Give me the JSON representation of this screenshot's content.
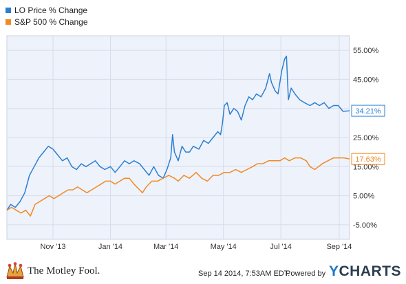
{
  "legend": [
    {
      "label": "LO Price  % Change",
      "color": "#2b7fd1"
    },
    {
      "label": "S&P 500 % Change",
      "color": "#f08a24"
    }
  ],
  "footer": {
    "brand": "The Motley Fool.",
    "date": "Sep 14 2014, 7:53AM EDT.",
    "powered": "Powered by",
    "ycharts_y": "Y",
    "ycharts_rest": "CHARTS"
  },
  "chart_data": {
    "type": "line",
    "xlabel": "",
    "ylabel": "",
    "x_range": [
      "2013-09-13",
      "2014-09-12"
    ],
    "ylim": [
      -10,
      60
    ],
    "grid": true,
    "legend_position": "top-left",
    "x_ticks": [
      {
        "label": "Nov '13",
        "date": "2013-11-01"
      },
      {
        "label": "Jan '14",
        "date": "2014-01-01"
      },
      {
        "label": "Mar '14",
        "date": "2014-03-01"
      },
      {
        "label": "May '14",
        "date": "2014-05-01"
      },
      {
        "label": "Jul '14",
        "date": "2014-07-01"
      },
      {
        "label": "Sep '14",
        "date": "2014-09-01"
      }
    ],
    "y_ticks": [
      {
        "label": "-5.00%",
        "value": -5
      },
      {
        "label": "5.00%",
        "value": 5
      },
      {
        "label": "15.00%",
        "value": 15
      },
      {
        "label": "25.00%",
        "value": 25
      },
      {
        "label": "35.00%",
        "value": 35
      },
      {
        "label": "45.00%",
        "value": 45
      },
      {
        "label": "55.00%",
        "value": 55
      }
    ],
    "series": [
      {
        "name": "LO Price  % Change",
        "color": "#2b7fd1",
        "end_label": "34.21%",
        "points": [
          [
            "2013-09-13",
            0
          ],
          [
            "2013-09-17",
            2
          ],
          [
            "2013-09-22",
            1
          ],
          [
            "2013-09-27",
            3
          ],
          [
            "2013-10-02",
            6
          ],
          [
            "2013-10-07",
            12
          ],
          [
            "2013-10-12",
            15
          ],
          [
            "2013-10-17",
            18
          ],
          [
            "2013-10-22",
            20
          ],
          [
            "2013-10-27",
            22
          ],
          [
            "2013-11-01",
            21
          ],
          [
            "2013-11-06",
            19
          ],
          [
            "2013-11-11",
            17
          ],
          [
            "2013-11-16",
            18
          ],
          [
            "2013-11-21",
            15
          ],
          [
            "2013-11-26",
            14
          ],
          [
            "2013-12-01",
            16
          ],
          [
            "2013-12-06",
            15
          ],
          [
            "2013-12-11",
            16
          ],
          [
            "2013-12-16",
            17
          ],
          [
            "2013-12-21",
            15
          ],
          [
            "2013-12-26",
            14
          ],
          [
            "2014-01-01",
            15
          ],
          [
            "2014-01-06",
            13
          ],
          [
            "2014-01-11",
            15
          ],
          [
            "2014-01-16",
            17
          ],
          [
            "2014-01-21",
            16
          ],
          [
            "2014-01-26",
            17
          ],
          [
            "2014-02-01",
            16
          ],
          [
            "2014-02-06",
            14
          ],
          [
            "2014-02-11",
            12
          ],
          [
            "2014-02-16",
            15
          ],
          [
            "2014-02-21",
            12
          ],
          [
            "2014-02-26",
            11
          ],
          [
            "2014-03-02",
            14
          ],
          [
            "2014-03-06",
            18
          ],
          [
            "2014-03-08",
            26
          ],
          [
            "2014-03-10",
            20
          ],
          [
            "2014-03-14",
            17
          ],
          [
            "2014-03-18",
            22
          ],
          [
            "2014-03-22",
            20
          ],
          [
            "2014-03-26",
            20
          ],
          [
            "2014-03-30",
            22
          ],
          [
            "2014-04-05",
            21
          ],
          [
            "2014-04-10",
            24
          ],
          [
            "2014-04-15",
            23
          ],
          [
            "2014-04-20",
            25
          ],
          [
            "2014-04-25",
            27
          ],
          [
            "2014-04-28",
            26
          ],
          [
            "2014-04-30",
            30
          ],
          [
            "2014-05-02",
            36
          ],
          [
            "2014-05-05",
            37
          ],
          [
            "2014-05-08",
            33
          ],
          [
            "2014-05-12",
            35
          ],
          [
            "2014-05-16",
            34
          ],
          [
            "2014-05-20",
            31
          ],
          [
            "2014-05-24",
            36
          ],
          [
            "2014-05-28",
            39
          ],
          [
            "2014-06-01",
            38
          ],
          [
            "2014-06-05",
            40
          ],
          [
            "2014-06-10",
            39
          ],
          [
            "2014-06-15",
            42
          ],
          [
            "2014-06-19",
            47
          ],
          [
            "2014-06-21",
            44
          ],
          [
            "2014-06-25",
            41
          ],
          [
            "2014-06-28",
            40
          ],
          [
            "2014-07-02",
            48
          ],
          [
            "2014-07-05",
            52
          ],
          [
            "2014-07-07",
            53
          ],
          [
            "2014-07-09",
            38
          ],
          [
            "2014-07-12",
            42
          ],
          [
            "2014-07-16",
            40
          ],
          [
            "2014-07-21",
            38
          ],
          [
            "2014-07-26",
            37
          ],
          [
            "2014-08-01",
            36
          ],
          [
            "2014-08-06",
            37
          ],
          [
            "2014-08-11",
            36
          ],
          [
            "2014-08-16",
            37
          ],
          [
            "2014-08-21",
            35
          ],
          [
            "2014-08-26",
            36
          ],
          [
            "2014-08-31",
            36
          ],
          [
            "2014-09-05",
            34
          ],
          [
            "2014-09-12",
            34.21
          ]
        ]
      },
      {
        "name": "S&P 500 % Change",
        "color": "#f08a24",
        "end_label": "17.63%",
        "points": [
          [
            "2013-09-13",
            0
          ],
          [
            "2013-09-18",
            1
          ],
          [
            "2013-09-23",
            0
          ],
          [
            "2013-09-28",
            -1
          ],
          [
            "2013-10-03",
            0
          ],
          [
            "2013-10-08",
            -2
          ],
          [
            "2013-10-13",
            2
          ],
          [
            "2013-10-18",
            3
          ],
          [
            "2013-10-23",
            4
          ],
          [
            "2013-10-28",
            5
          ],
          [
            "2013-11-02",
            4
          ],
          [
            "2013-11-07",
            5
          ],
          [
            "2013-11-12",
            6
          ],
          [
            "2013-11-17",
            7
          ],
          [
            "2013-11-22",
            7
          ],
          [
            "2013-11-27",
            8
          ],
          [
            "2013-12-02",
            7
          ],
          [
            "2013-12-07",
            6
          ],
          [
            "2013-12-12",
            7
          ],
          [
            "2013-12-17",
            8
          ],
          [
            "2013-12-22",
            9
          ],
          [
            "2013-12-27",
            10
          ],
          [
            "2014-01-01",
            10
          ],
          [
            "2014-01-06",
            9
          ],
          [
            "2014-01-11",
            10
          ],
          [
            "2014-01-16",
            11
          ],
          [
            "2014-01-21",
            11
          ],
          [
            "2014-01-26",
            9
          ],
          [
            "2014-02-01",
            7
          ],
          [
            "2014-02-04",
            6
          ],
          [
            "2014-02-08",
            8
          ],
          [
            "2014-02-14",
            10
          ],
          [
            "2014-02-20",
            10
          ],
          [
            "2014-02-26",
            11
          ],
          [
            "2014-03-04",
            12
          ],
          [
            "2014-03-10",
            11
          ],
          [
            "2014-03-14",
            10
          ],
          [
            "2014-03-20",
            12
          ],
          [
            "2014-03-26",
            11
          ],
          [
            "2014-04-02",
            13
          ],
          [
            "2014-04-08",
            11
          ],
          [
            "2014-04-14",
            10
          ],
          [
            "2014-04-20",
            12
          ],
          [
            "2014-04-26",
            12
          ],
          [
            "2014-05-02",
            13
          ],
          [
            "2014-05-08",
            13
          ],
          [
            "2014-05-14",
            14
          ],
          [
            "2014-05-20",
            13
          ],
          [
            "2014-05-26",
            14
          ],
          [
            "2014-06-01",
            15
          ],
          [
            "2014-06-06",
            16
          ],
          [
            "2014-06-12",
            16
          ],
          [
            "2014-06-18",
            17
          ],
          [
            "2014-06-24",
            17
          ],
          [
            "2014-06-30",
            17
          ],
          [
            "2014-07-05",
            18
          ],
          [
            "2014-07-10",
            17
          ],
          [
            "2014-07-16",
            18
          ],
          [
            "2014-07-22",
            18
          ],
          [
            "2014-07-28",
            17
          ],
          [
            "2014-08-01",
            15
          ],
          [
            "2014-08-06",
            14
          ],
          [
            "2014-08-10",
            15
          ],
          [
            "2014-08-14",
            16
          ],
          [
            "2014-08-20",
            17
          ],
          [
            "2014-08-26",
            18
          ],
          [
            "2014-09-01",
            18
          ],
          [
            "2014-09-06",
            18
          ],
          [
            "2014-09-12",
            17.63
          ]
        ]
      }
    ]
  }
}
